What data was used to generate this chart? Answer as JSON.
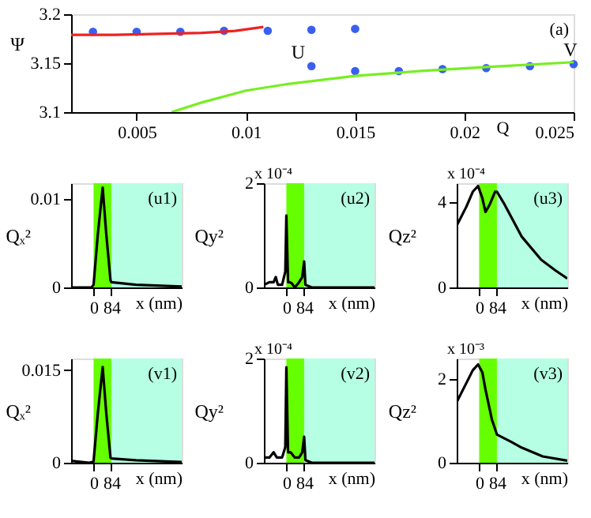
{
  "chart_data": [
    {
      "type": "scatter",
      "xlabel": "Q",
      "ylabel": "Ψ",
      "xlim": [
        0.002,
        0.025
      ],
      "ylim": [
        3.1,
        3.2
      ],
      "xticks": [
        0.005,
        0.01,
        0.015,
        0.02,
        0.025
      ],
      "yticks": [
        3.1,
        3.15,
        3.2
      ],
      "annotations": [
        "(a)",
        {
          "text": "U",
          "x": 0.013,
          "y": 3.147
        },
        {
          "text": "V",
          "x": 0.025,
          "y": 3.149
        }
      ],
      "series": [
        {
          "type": "scatter",
          "marker": "circle",
          "color": "#3a5ff0",
          "x": [
            0.003,
            0.005,
            0.007,
            0.009,
            0.011,
            0.013,
            0.015,
            0.013,
            0.015,
            0.017,
            0.019,
            0.021,
            0.023,
            0.025
          ],
          "values": [
            3.182,
            3.182,
            3.182,
            3.183,
            3.183,
            3.184,
            3.185,
            3.147,
            3.142,
            3.142,
            3.144,
            3.145,
            3.147,
            3.149
          ]
        },
        {
          "type": "line",
          "color": "#ee2222",
          "x": [
            0.002,
            0.004,
            0.006,
            0.008,
            0.0095,
            0.0108
          ],
          "values": [
            3.179,
            3.179,
            3.18,
            3.181,
            3.183,
            3.187
          ]
        },
        {
          "type": "line",
          "color": "#77ee22",
          "x": [
            0.0066,
            0.008,
            0.01,
            0.012,
            0.015,
            0.018,
            0.021,
            0.025
          ],
          "values": [
            3.1,
            3.11,
            3.122,
            3.129,
            3.137,
            3.142,
            3.146,
            3.151
          ]
        }
      ]
    },
    {
      "type": "line",
      "xlabel": "x (nm)",
      "ylabel": "Qₓ²",
      "xlim": [
        -106,
        416
      ],
      "ylim": [
        0,
        0.0118
      ],
      "xticks": [
        0,
        84
      ],
      "yticks": [
        0,
        0.01
      ],
      "annotations": [
        "(u1)"
      ],
      "bands": [
        {
          "axis": "x",
          "from": 0,
          "to": 84,
          "color": "#66ff00"
        },
        {
          "axis": "x",
          "from": 84,
          "to": 416,
          "color": "#b6ffe4"
        }
      ],
      "series": [
        {
          "color": "#000000",
          "x": [
            -106,
            -10,
            0,
            20,
            43,
            60,
            80,
            84,
            200,
            416
          ],
          "values": [
            0,
            0,
            0.0003,
            0.006,
            0.0113,
            0.006,
            0.0008,
            0.0006,
            0.0003,
            0.0001
          ]
        }
      ]
    },
    {
      "type": "line",
      "xlabel": "x (nm)",
      "ylabel": "Qy²",
      "xlim": [
        -106,
        416
      ],
      "ylim": [
        0,
        2
      ],
      "xticks": [
        0,
        84
      ],
      "yticks": [
        0,
        2
      ],
      "annotations": [
        "(u2)",
        "x 10⁻⁴"
      ],
      "bands": [
        {
          "axis": "x",
          "from": 0,
          "to": 84,
          "color": "#66ff00"
        },
        {
          "axis": "x",
          "from": 84,
          "to": 416,
          "color": "#b6ffe4"
        }
      ],
      "series": [
        {
          "color": "#000000",
          "x": [
            -106,
            -80,
            -60,
            -50,
            -40,
            -20,
            -5,
            0,
            8,
            15,
            25,
            40,
            60,
            75,
            84,
            90,
            120,
            416
          ],
          "values": [
            0.05,
            0.1,
            0.1,
            0.2,
            0.05,
            0.05,
            0.3,
            1.38,
            0.1,
            0.1,
            0.08,
            0,
            0.1,
            0.2,
            0.5,
            0.05,
            0,
            0
          ]
        }
      ]
    },
    {
      "type": "line",
      "xlabel": "x (nm)",
      "ylabel": "Qz²",
      "xlim": [
        -106,
        416
      ],
      "ylim": [
        0,
        4.9
      ],
      "xticks": [
        0,
        84
      ],
      "yticks": [
        0,
        4
      ],
      "annotations": [
        "(u3)",
        "x 10⁻⁴"
      ],
      "bands": [
        {
          "axis": "x",
          "from": 0,
          "to": 84,
          "color": "#66ff00"
        },
        {
          "axis": "x",
          "from": 84,
          "to": 416,
          "color": "#b6ffe4"
        }
      ],
      "series": [
        {
          "color": "#000000",
          "x": [
            -106,
            -60,
            -30,
            -5,
            15,
            30,
            50,
            75,
            84,
            120,
            200,
            293,
            360,
            416
          ],
          "values": [
            2.9,
            3.8,
            4.5,
            4.77,
            4.2,
            3.55,
            3.9,
            4.5,
            4.5,
            3.9,
            2.4,
            1.3,
            0.8,
            0.42
          ]
        }
      ]
    },
    {
      "type": "line",
      "xlabel": "x (nm)",
      "ylabel": "Qₓ²",
      "xlim": [
        -106,
        416
      ],
      "ylim": [
        0,
        0.0169
      ],
      "xticks": [
        0,
        84
      ],
      "yticks": [
        0,
        0.015
      ],
      "annotations": [
        "(v1)"
      ],
      "bands": [
        {
          "axis": "x",
          "from": 0,
          "to": 84,
          "color": "#66ff00"
        },
        {
          "axis": "x",
          "from": 84,
          "to": 416,
          "color": "#b6ffe4"
        }
      ],
      "series": [
        {
          "color": "#000000",
          "x": [
            -106,
            -20,
            0,
            20,
            43,
            60,
            80,
            84,
            200,
            416
          ],
          "values": [
            0.0003,
            0,
            0.0002,
            0.008,
            0.0155,
            0.008,
            0.0008,
            0.0007,
            0.0004,
            0.0001
          ]
        }
      ]
    },
    {
      "type": "line",
      "xlabel": "x (nm)",
      "ylabel": "Qy²",
      "xlim": [
        -106,
        416
      ],
      "ylim": [
        0,
        2
      ],
      "xticks": [
        0,
        84
      ],
      "yticks": [
        0,
        2
      ],
      "annotations": [
        "(v2)",
        "x 10⁻⁴"
      ],
      "bands": [
        {
          "axis": "x",
          "from": 0,
          "to": 84,
          "color": "#66ff00"
        },
        {
          "axis": "x",
          "from": 84,
          "to": 416,
          "color": "#b6ffe4"
        }
      ],
      "series": [
        {
          "color": "#000000",
          "x": [
            -106,
            -80,
            -60,
            -45,
            -20,
            -5,
            0,
            8,
            20,
            40,
            60,
            75,
            84,
            90,
            120,
            416
          ],
          "values": [
            0.1,
            0.1,
            0.2,
            0.1,
            0.1,
            0.3,
            1.83,
            0.2,
            0.2,
            0.1,
            0.1,
            0.2,
            0.5,
            0.05,
            0,
            0
          ]
        }
      ]
    },
    {
      "type": "line",
      "xlabel": "x (nm)",
      "ylabel": "Qz²",
      "xlim": [
        -106,
        416
      ],
      "ylim": [
        0,
        2.48
      ],
      "xticks": [
        0,
        84
      ],
      "yticks": [
        0,
        2
      ],
      "annotations": [
        "(v3)",
        "x 10⁻³"
      ],
      "bands": [
        {
          "axis": "x",
          "from": 0,
          "to": 84,
          "color": "#66ff00"
        },
        {
          "axis": "x",
          "from": 84,
          "to": 416,
          "color": "#b6ffe4"
        }
      ],
      "series": [
        {
          "color": "#000000",
          "x": [
            -106,
            -60,
            -30,
            -5,
            15,
            30,
            60,
            84,
            150,
            200,
            300,
            416
          ],
          "values": [
            1.44,
            1.9,
            2.2,
            2.34,
            2.15,
            1.74,
            1.03,
            0.67,
            0.5,
            0.36,
            0.15,
            0.05
          ]
        }
      ]
    }
  ]
}
